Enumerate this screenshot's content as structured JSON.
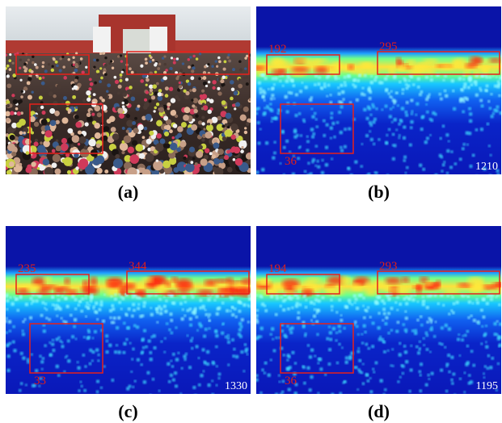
{
  "panels": [
    {
      "caption": "(a)"
    },
    {
      "caption": "(b)",
      "box_labels": [
        "192",
        "295",
        "36"
      ],
      "count": "1210"
    },
    {
      "caption": "(c)",
      "box_labels": [
        "235",
        "344",
        "33"
      ],
      "count": "1330"
    },
    {
      "caption": "(d)",
      "box_labels": [
        "194",
        "293",
        "36"
      ],
      "count": "1195"
    }
  ]
}
